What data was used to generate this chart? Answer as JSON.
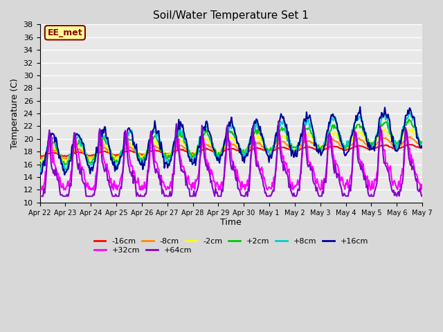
{
  "title": "Soil/Water Temperature Set 1",
  "xlabel": "Time",
  "ylabel": "Temperature (C)",
  "ylim": [
    10,
    38
  ],
  "yticks": [
    10,
    12,
    14,
    16,
    18,
    20,
    22,
    24,
    26,
    28,
    30,
    32,
    34,
    36,
    38
  ],
  "annotation_text": "EE_met",
  "annotation_bg": "#ffff99",
  "annotation_border": "#8b0000",
  "annotation_text_color": "#8b0000",
  "series": [
    {
      "label": "-16cm",
      "color": "#ff0000",
      "linewidth": 1.5,
      "zorder": 5
    },
    {
      "label": "-8cm",
      "color": "#ff8800",
      "linewidth": 1.5,
      "zorder": 5
    },
    {
      "label": "-2cm",
      "color": "#ffff00",
      "linewidth": 1.5,
      "zorder": 5
    },
    {
      "label": "+2cm",
      "color": "#00cc00",
      "linewidth": 1.5,
      "zorder": 5
    },
    {
      "label": "+8cm",
      "color": "#00cccc",
      "linewidth": 1.5,
      "zorder": 5
    },
    {
      "label": "+16cm",
      "color": "#000099",
      "linewidth": 1.5,
      "zorder": 5
    },
    {
      "label": "+32cm",
      "color": "#ff00ff",
      "linewidth": 1.5,
      "zorder": 5
    },
    {
      "label": "+64cm",
      "color": "#8800cc",
      "linewidth": 1.5,
      "zorder": 5
    }
  ],
  "xtick_labels": [
    "Apr 22",
    "Apr 23",
    "Apr 24",
    "Apr 25",
    "Apr 26",
    "Apr 27",
    "Apr 28",
    "Apr 29",
    "Apr 30",
    "May 1",
    "May 2",
    "May 3",
    "May 4",
    "May 5",
    "May 6",
    "May 7"
  ],
  "n_points": 480
}
